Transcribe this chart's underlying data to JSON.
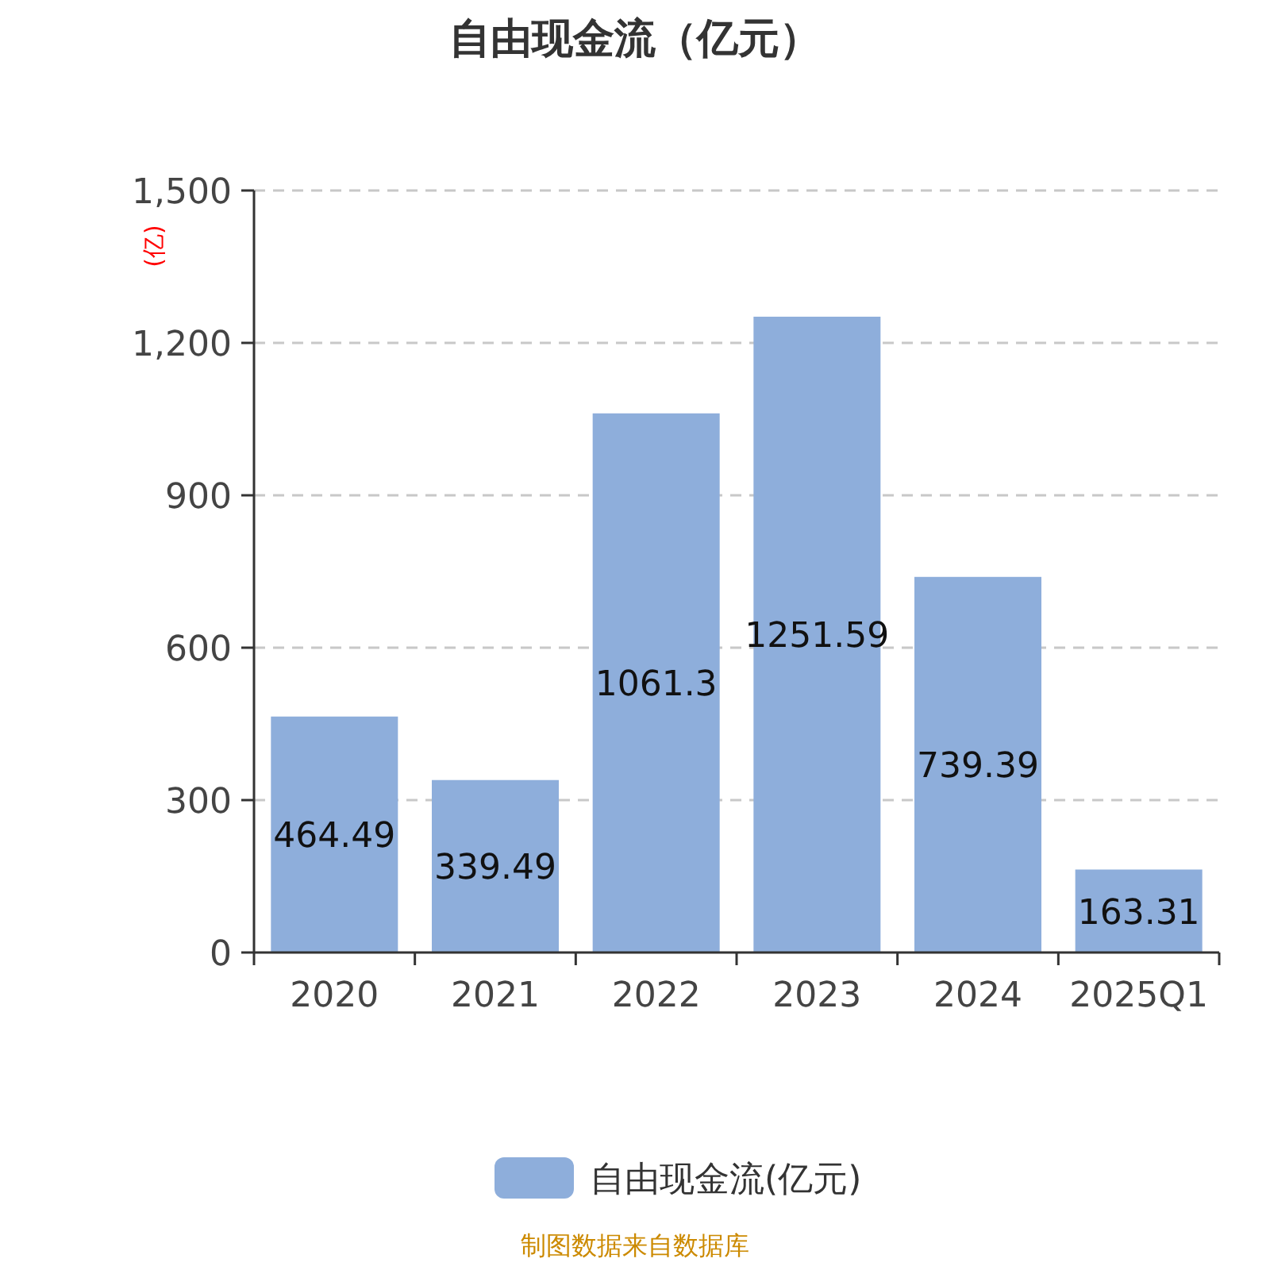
{
  "chart_data": {
    "type": "bar",
    "title": "自由现金流（亿元）",
    "ylabel": "(亿)",
    "categories": [
      "2020",
      "2021",
      "2022",
      "2023",
      "2024",
      "2025Q1"
    ],
    "series": [
      {
        "name": "自由现金流(亿元)",
        "color": "#8eaedb",
        "values": [
          464.49,
          339.49,
          1061.3,
          1251.59,
          739.39,
          163.31
        ]
      }
    ],
    "ylim": [
      0,
      1500
    ],
    "yticks": [
      0,
      300,
      600,
      900,
      {
        "value": 1200,
        "label": "1,200"
      },
      {
        "value": 1500,
        "label": "1,500"
      }
    ],
    "grid": "y",
    "legend": "bottom",
    "data_labels": true,
    "annotations": [
      "制图数据来自数据库"
    ]
  }
}
